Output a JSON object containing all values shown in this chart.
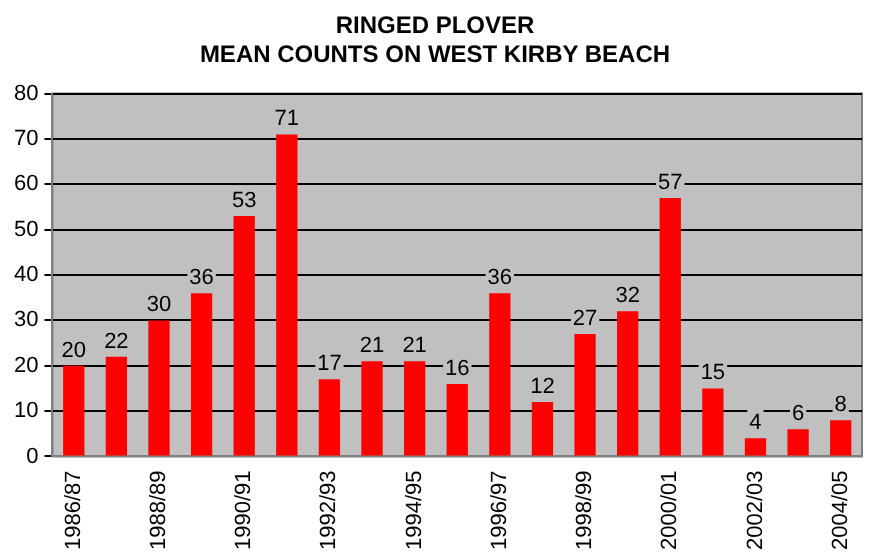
{
  "chart_data": {
    "type": "bar",
    "title": "RINGED PLOVER",
    "subtitle": "MEAN COUNTS ON WEST KIRBY BEACH",
    "categories": [
      "1986/87",
      null,
      "1988/89",
      null,
      "1990/91",
      null,
      "1992/93",
      null,
      "1994/95",
      null,
      "1996/97",
      null,
      "1998/99",
      null,
      "2000/01",
      null,
      "2002/03",
      null,
      "2004/05"
    ],
    "values": [
      20,
      22,
      30,
      36,
      53,
      71,
      17,
      21,
      21,
      16,
      36,
      12,
      27,
      32,
      57,
      15,
      4,
      6,
      8
    ],
    "color": "#ff0000",
    "ylim": [
      0,
      80
    ],
    "yticks": [
      0,
      10,
      20,
      30,
      40,
      50,
      60,
      70,
      80
    ],
    "grid": "y",
    "data_labels": true,
    "legend": false
  }
}
